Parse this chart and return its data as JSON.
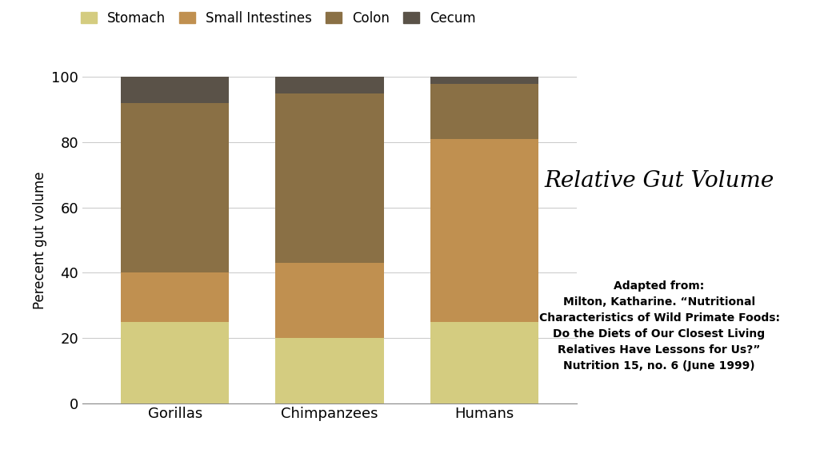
{
  "categories": [
    "Gorillas",
    "Chimpanzees",
    "Humans"
  ],
  "segments": {
    "Stomach": [
      25,
      20,
      25
    ],
    "Small Intestines": [
      15,
      23,
      56
    ],
    "Colon": [
      52,
      52,
      17
    ],
    "Cecum": [
      8,
      5,
      2
    ]
  },
  "colors": {
    "Stomach": "#d4cc80",
    "Small Intestines": "#c09050",
    "Colon": "#8a7045",
    "Cecum": "#5a5248"
  },
  "ylabel": "Perecent gut volume",
  "ylim": [
    0,
    100
  ],
  "yticks": [
    0,
    20,
    40,
    60,
    80,
    100
  ],
  "background_color": "#ffffff",
  "chart_bg": "#ffffff",
  "grid_color": "#cccccc",
  "title": "Relative Gut Volume",
  "annotation": "Adapted from:\nMilton, Katharine. “Nutritional\nCharacteristics of Wild Primate Foods:\nDo the Diets of Our Closest Living\nRelatives Have Lessons for Us?”\nNutrition 15, no. 6 (June 1999)",
  "bar_width": 0.7,
  "legend_order": [
    "Stomach",
    "Small Intestines",
    "Colon",
    "Cecum"
  ],
  "title_fontsize": 20,
  "label_fontsize": 12,
  "tick_fontsize": 13,
  "annotation_fontsize": 10,
  "legend_fontsize": 12
}
